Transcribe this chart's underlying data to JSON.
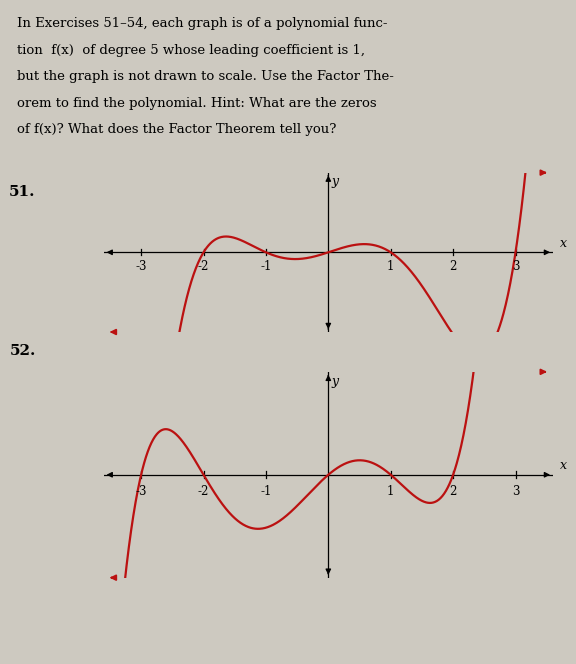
{
  "background_color": "#cdc9c0",
  "text_color": "#000000",
  "text_block_lines": [
    "In Exercises 51–54, each graph is of a polynomial func-",
    "tion  f(x)  of degree 5 whose leading coefficient is 1,",
    "but the graph is not drawn to scale. Use the Factor The-",
    "orem to find the polynomial. Hint: What are the zeros",
    "of f(x)? What does the Factor Theorem tell you?"
  ],
  "label_51": "51.",
  "label_52": "52.",
  "graph1": {
    "zeros": [
      -2,
      -1,
      0,
      1,
      3
    ],
    "xlim": [
      -3.6,
      3.6
    ],
    "ylim": [
      -0.7,
      0.7
    ],
    "xticks": [
      -3,
      -2,
      -1,
      1,
      2,
      3
    ],
    "scale": 0.03,
    "color": "#bb1111",
    "linewidth": 1.6
  },
  "graph2": {
    "zeros": [
      -3,
      -2,
      0,
      1,
      2
    ],
    "xlim": [
      -3.6,
      3.6
    ],
    "ylim": [
      -0.7,
      0.7
    ],
    "xticks": [
      -3,
      -2,
      -1,
      1,
      2,
      3
    ],
    "scale": 0.03,
    "color": "#bb1111",
    "linewidth": 1.6
  },
  "font_size_text": 9.5,
  "font_size_label": 11,
  "font_size_tick": 8.5,
  "font_size_axis_label": 9
}
